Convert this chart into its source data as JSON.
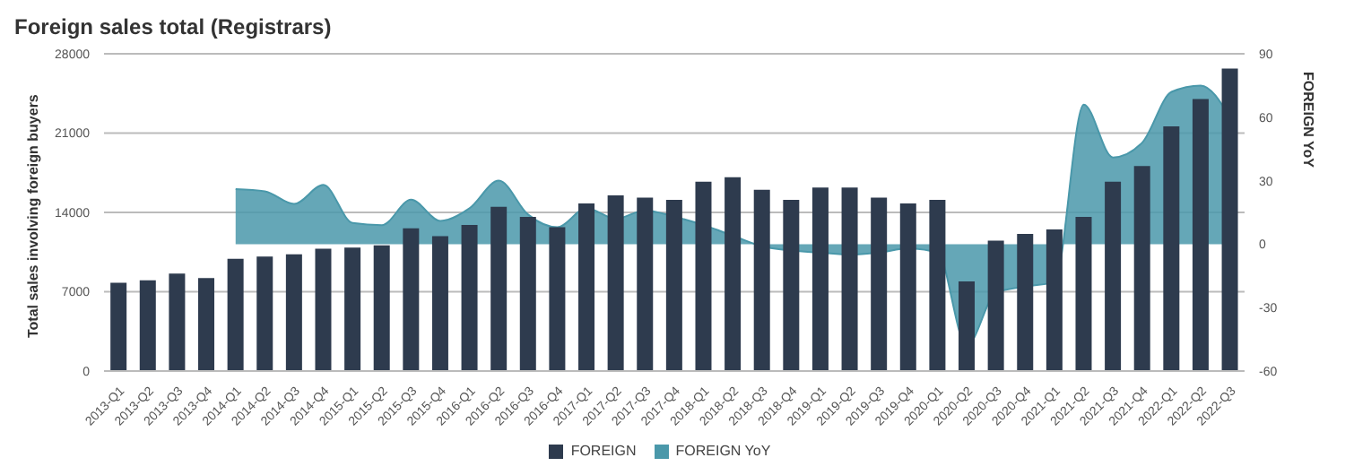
{
  "chart_data": {
    "type": "bar",
    "title": "Foreign sales total (Registrars)",
    "ylabel": "Total sales involving foreign buyers",
    "y2label": "FOREIGN YoY",
    "categories": [
      "2013-Q1",
      "2013-Q2",
      "2013-Q3",
      "2013-Q4",
      "2014-Q1",
      "2014-Q2",
      "2014-Q3",
      "2014-Q4",
      "2015-Q1",
      "2015-Q2",
      "2015-Q3",
      "2015-Q4",
      "2016-Q1",
      "2016-Q2",
      "2016-Q3",
      "2016-Q4",
      "2017-Q1",
      "2017-Q2",
      "2017-Q3",
      "2017-Q4",
      "2018-Q1",
      "2018-Q2",
      "2018-Q3",
      "2018-Q4",
      "2019-Q1",
      "2019-Q2",
      "2019-Q3",
      "2019-Q4",
      "2020-Q1",
      "2020-Q2",
      "2020-Q3",
      "2020-Q4",
      "2021-Q1",
      "2021-Q2",
      "2021-Q3",
      "2021-Q4",
      "2022-Q1",
      "2022-Q2",
      "2022-Q3"
    ],
    "series": [
      {
        "name": "FOREIGN",
        "color": "#2e3b4e",
        "values": [
          7800,
          8000,
          8600,
          8200,
          9900,
          10100,
          10300,
          10800,
          10900,
          11100,
          12600,
          11900,
          12900,
          14500,
          13600,
          12700,
          14800,
          15500,
          15300,
          15100,
          16700,
          17100,
          16000,
          15100,
          16200,
          16200,
          15300,
          14800,
          15100,
          7900,
          11500,
          12100,
          12500,
          13600,
          16700,
          18100,
          21600,
          24000,
          26700
        ]
      },
      {
        "name": "FOREIGN YoY",
        "type": "area",
        "axis": "y2",
        "color": "#4a98aa",
        "values": [
          null,
          null,
          null,
          null,
          26,
          25,
          19,
          28,
          10,
          9,
          21,
          11,
          17,
          30,
          14,
          8,
          17,
          12,
          16,
          13,
          9,
          4,
          -1,
          -3,
          -4,
          -5,
          -4,
          -2,
          -4,
          -48,
          -23,
          -20,
          -18,
          66,
          41,
          48,
          72,
          75,
          60
        ]
      }
    ],
    "ylim": [
      0,
      28000
    ],
    "yticks": [
      0,
      7000,
      14000,
      21000,
      28000
    ],
    "y2lim": [
      -60,
      90
    ],
    "y2ticks": [
      -60,
      -30,
      0,
      30,
      60,
      90
    ],
    "grid": "y",
    "legend": "bottom"
  }
}
